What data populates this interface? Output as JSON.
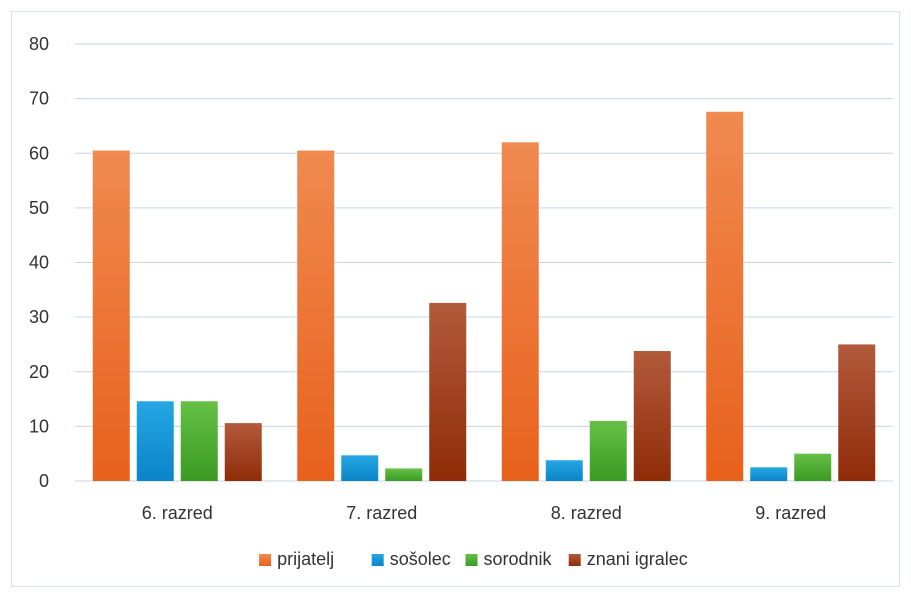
{
  "chart_data": {
    "type": "bar",
    "categories": [
      "6. razred",
      "7. razred",
      "8. razred",
      "9. razred"
    ],
    "series": [
      {
        "name": "prijatelj",
        "values": [
          60.5,
          60.5,
          62.0,
          67.6
        ],
        "color_top": "#f08a50",
        "color_bottom": "#e8611c"
      },
      {
        "name": "sošolec",
        "values": [
          14.6,
          4.7,
          3.8,
          2.5
        ],
        "color_top": "#25a7e3",
        "color_bottom": "#0b84c9"
      },
      {
        "name": "sorodnik",
        "values": [
          14.6,
          2.3,
          11.0,
          5.0
        ],
        "color_top": "#66c046",
        "color_bottom": "#3a9a22"
      },
      {
        "name": "znani igralec",
        "values": [
          10.6,
          32.6,
          23.8,
          25.0
        ],
        "color_top": "#b25a3c",
        "color_bottom": "#8f2c08"
      }
    ],
    "yticks": [
      0,
      10,
      20,
      30,
      40,
      50,
      60,
      70,
      80
    ],
    "ylim": [
      0,
      80
    ],
    "grid": true,
    "legend_position": "bottom",
    "title": "",
    "xlabel": "",
    "ylabel": ""
  }
}
